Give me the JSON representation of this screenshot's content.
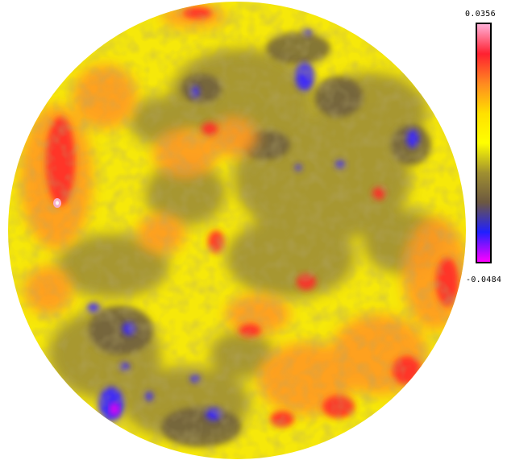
{
  "colorbar": {
    "max_label": "0.0356",
    "min_label": "-0.0484",
    "stops": [
      "#ffb0d8",
      "#ff2030",
      "#ff8a20",
      "#ffe000",
      "#ffff00",
      "#a09030",
      "#6c5840",
      "#2020ff",
      "#ff00ff"
    ]
  },
  "map": {
    "background": "#f6e80a"
  }
}
